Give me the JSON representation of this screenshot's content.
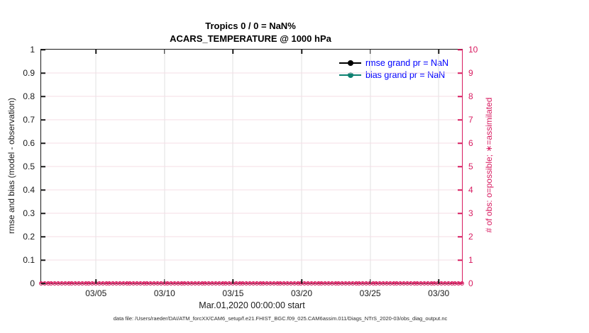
{
  "colors": {
    "axis_pink": "#d81b60",
    "teal": "#0d8070",
    "legend_blue": "#0000ff",
    "grid_vertical": "#e0e0e0",
    "grid_horizontal": "#f6dce6",
    "axis_black": "#1a1a1a"
  },
  "chart_data": {
    "type": "line",
    "title": "Tropics 0 / 0 = NaN%",
    "subtitle": "ACARS_TEMPERATURE @ 1000 hPa",
    "grid": true,
    "x_axis": {
      "label": "Mar.01,2020 00:00:00 start",
      "range_days": [
        1,
        31.7
      ],
      "ticks": [
        {
          "day": 5,
          "label": "03/05"
        },
        {
          "day": 10,
          "label": "03/10"
        },
        {
          "day": 15,
          "label": "03/15"
        },
        {
          "day": 20,
          "label": "03/20"
        },
        {
          "day": 25,
          "label": "03/25"
        },
        {
          "day": 30,
          "label": "03/30"
        }
      ]
    },
    "y_axis_left": {
      "label": "rmse and bias (model - observation)",
      "min": 0,
      "max": 1,
      "color": "#1a1a1a",
      "ticks": [
        {
          "v": 0,
          "label": "0"
        },
        {
          "v": 0.1,
          "label": "0.1"
        },
        {
          "v": 0.2,
          "label": "0.2"
        },
        {
          "v": 0.3,
          "label": "0.3"
        },
        {
          "v": 0.4,
          "label": "0.4"
        },
        {
          "v": 0.5,
          "label": "0.5"
        },
        {
          "v": 0.6,
          "label": "0.6"
        },
        {
          "v": 0.7,
          "label": "0.7"
        },
        {
          "v": 0.8,
          "label": "0.8"
        },
        {
          "v": 0.9,
          "label": "0.9"
        },
        {
          "v": 1,
          "label": "1"
        }
      ]
    },
    "y_axis_right": {
      "label": "# of obs: o=possible; ∗=assimilated",
      "min": 0,
      "max": 10,
      "color": "#d81b60",
      "ticks": [
        {
          "v": 0,
          "label": "0"
        },
        {
          "v": 1,
          "label": "1"
        },
        {
          "v": 2,
          "label": "2"
        },
        {
          "v": 3,
          "label": "3"
        },
        {
          "v": 4,
          "label": "4"
        },
        {
          "v": 5,
          "label": "5"
        },
        {
          "v": 6,
          "label": "6"
        },
        {
          "v": 7,
          "label": "7"
        },
        {
          "v": 8,
          "label": "8"
        },
        {
          "v": 9,
          "label": "9"
        },
        {
          "v": 10,
          "label": "10"
        }
      ]
    },
    "series": [
      {
        "name": "rmse",
        "legend_label": "rmse grand pr = NaN",
        "color": "#000000",
        "marker": "filled-circle",
        "values": null,
        "note": "all values NaN — no curve drawn"
      },
      {
        "name": "bias",
        "legend_label": "bias grand pr = NaN",
        "color": "#0d8070",
        "marker": "filled-circle",
        "values": null,
        "note": "all values NaN — no curve drawn"
      },
      {
        "name": "possible-obs",
        "marker": "o",
        "color": "#d81b60",
        "constant_value": 0,
        "points": 124
      },
      {
        "name": "assimilated-obs",
        "marker": "*",
        "color": "#d81b60",
        "constant_value": 0,
        "points": 124
      }
    ],
    "legend": {
      "position": "top-right-inside",
      "entries": [
        {
          "label": "rmse grand pr = NaN",
          "color": "#000000"
        },
        {
          "label": "bias grand pr = NaN",
          "color": "#0d8070"
        }
      ]
    },
    "obs_markers": {
      "count": 124,
      "value": 0,
      "possible_marker": "o",
      "assimilated_marker": "*",
      "color": "#d81b60"
    }
  },
  "footer": {
    "text": "data file: /Users/raeder/DAI/ATM_forcXX/CAM6_setup/f.e21.FHIST_BGC.f09_025.CAM6assim.011/Diags_NTrS_2020-03/obs_diag_output.nc"
  }
}
